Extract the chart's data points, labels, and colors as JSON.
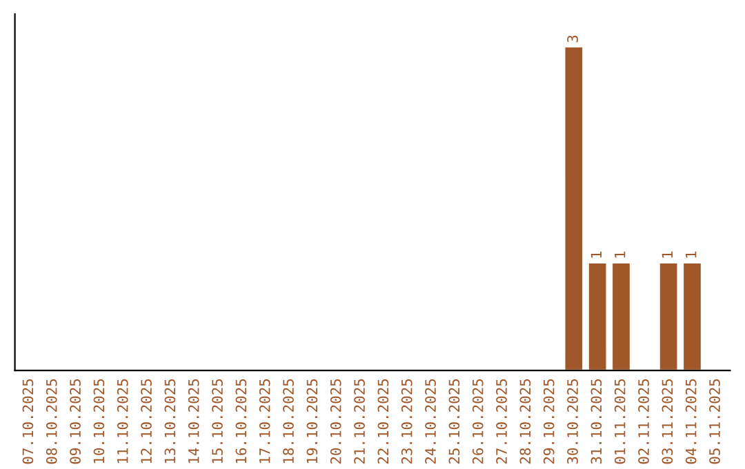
{
  "chart_data": {
    "type": "bar",
    "categories": [
      "07.10.2025",
      "08.10.2025",
      "09.10.2025",
      "10.10.2025",
      "11.10.2025",
      "12.10.2025",
      "13.10.2025",
      "14.10.2025",
      "15.10.2025",
      "16.10.2025",
      "17.10.2025",
      "18.10.2025",
      "19.10.2025",
      "20.10.2025",
      "21.10.2025",
      "22.10.2025",
      "23.10.2025",
      "24.10.2025",
      "25.10.2025",
      "26.10.2025",
      "27.10.2025",
      "28.10.2025",
      "29.10.2025",
      "30.10.2025",
      "31.10.2025",
      "01.11.2025",
      "02.11.2025",
      "03.11.2025",
      "04.11.2025",
      "05.11.2025"
    ],
    "values": [
      null,
      null,
      null,
      null,
      null,
      null,
      null,
      null,
      null,
      null,
      null,
      null,
      null,
      null,
      null,
      null,
      null,
      null,
      null,
      null,
      null,
      null,
      null,
      3,
      1,
      1,
      null,
      1,
      1,
      null
    ],
    "value_labels": [
      null,
      null,
      null,
      null,
      null,
      null,
      null,
      null,
      null,
      null,
      null,
      null,
      null,
      null,
      null,
      null,
      null,
      null,
      null,
      null,
      null,
      null,
      null,
      "3",
      "1",
      "1",
      null,
      "1",
      "1",
      null
    ],
    "color": "#a0572a",
    "tick_labels": "x",
    "grid": false,
    "legend": false
  }
}
